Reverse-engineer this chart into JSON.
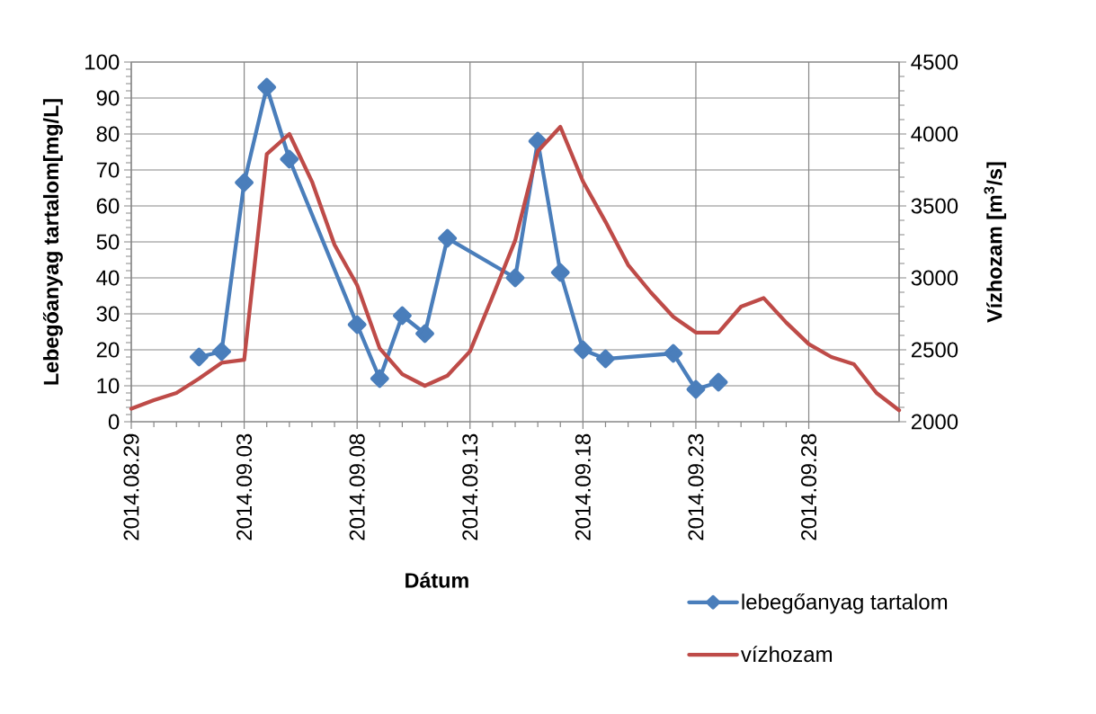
{
  "chart_data": {
    "type": "line",
    "xlabel": "Dátum",
    "ylabel": "Lebegőanyag tartalom[mg/L]",
    "y2label": "Vízhozam [m$^{3}$/s]",
    "xlim": [
      "2014-08-29",
      "2014-10-02"
    ],
    "xticks": [
      {
        "value": "2014-08-29",
        "label": "2014.08.29"
      },
      {
        "value": "2014-09-03",
        "label": "2014.09.03"
      },
      {
        "value": "2014-09-08",
        "label": "2014.09.08"
      },
      {
        "value": "2014-09-13",
        "label": "2014.09.13"
      },
      {
        "value": "2014-09-18",
        "label": "2014.09.18"
      },
      {
        "value": "2014-09-23",
        "label": "2014.09.23"
      },
      {
        "value": "2014-09-28",
        "label": "2014.09.28"
      }
    ],
    "ylim": [
      0,
      100
    ],
    "yticks": [
      0,
      10,
      20,
      30,
      40,
      50,
      60,
      70,
      80,
      90,
      100
    ],
    "y2lim": [
      2000,
      4500
    ],
    "y2ticks": [
      2000,
      2500,
      3000,
      3500,
      4000,
      4500
    ],
    "grid": true,
    "legend": "bottom right",
    "line_style": "solid",
    "series": [
      {
        "name": "lebegőanyag tartalom",
        "color": "#4a7ebb",
        "marker": "diamond",
        "x": [
          "2014-09-01",
          "2014-09-02",
          "2014-09-03",
          "2014-09-04",
          "2014-09-05",
          "2014-09-08",
          "2014-09-09",
          "2014-09-10",
          "2014-09-11",
          "2014-09-12",
          "2014-09-15",
          "2014-09-16",
          "2014-09-17",
          "2014-09-18",
          "2014-09-19",
          "2014-09-22",
          "2014-09-23",
          "2014-09-24"
        ],
        "values": [
          18,
          19.5,
          66.5,
          93,
          73,
          27,
          12,
          29.5,
          24.5,
          51,
          40,
          78,
          41.5,
          20,
          17.5,
          19,
          9,
          11
        ]
      },
      {
        "name": "vízhozam",
        "color": "#be4b48",
        "axis": "y2",
        "x": [
          "2014-08-29",
          "2014-08-30",
          "2014-08-31",
          "2014-09-01",
          "2014-09-02",
          "2014-09-03",
          "2014-09-04",
          "2014-09-05",
          "2014-09-06",
          "2014-09-07",
          "2014-09-08",
          "2014-09-09",
          "2014-09-10",
          "2014-09-11",
          "2014-09-12",
          "2014-09-13",
          "2014-09-14",
          "2014-09-15",
          "2014-09-16",
          "2014-09-17",
          "2014-09-18",
          "2014-09-19",
          "2014-09-20",
          "2014-09-21",
          "2014-09-22",
          "2014-09-23",
          "2014-09-24",
          "2014-09-25",
          "2014-09-26",
          "2014-09-27",
          "2014-09-28",
          "2014-09-29",
          "2014-09-30",
          "2014-10-01",
          "2014-10-02"
        ],
        "values": [
          2090,
          2150,
          2200,
          2300,
          2410,
          2430,
          3860,
          4000,
          3670,
          3230,
          2950,
          2510,
          2330,
          2250,
          2320,
          2490,
          2870,
          3260,
          3880,
          4050,
          3670,
          3390,
          3090,
          2900,
          2730,
          2620,
          2620,
          2800,
          2860,
          2690,
          2540,
          2450,
          2400,
          2200,
          2080
        ]
      }
    ]
  }
}
